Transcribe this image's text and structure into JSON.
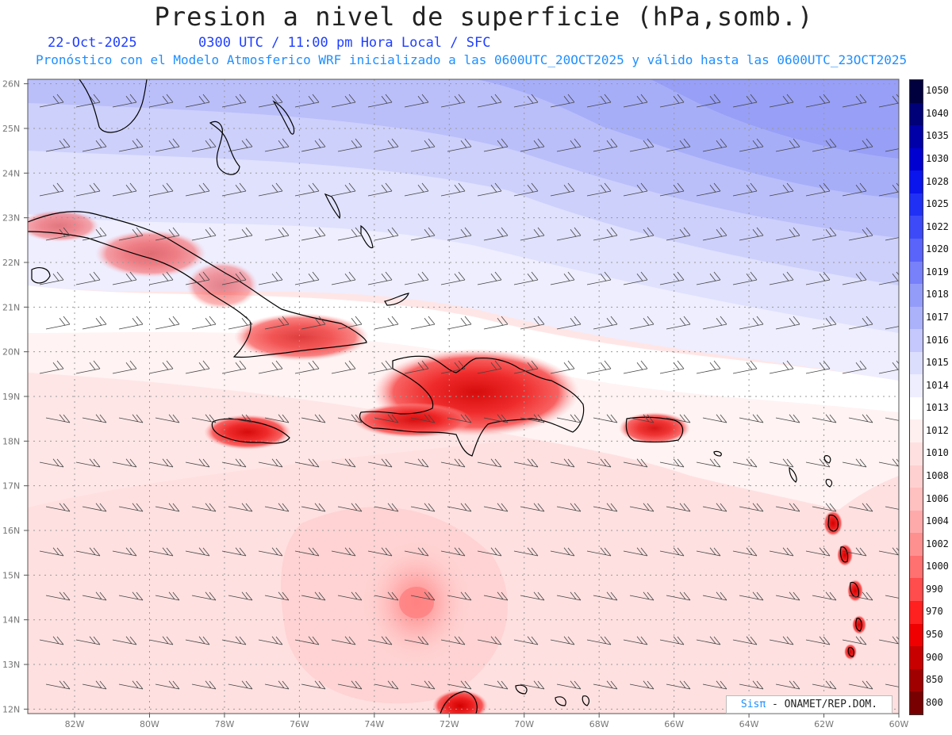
{
  "header": {
    "title": "Presion a nivel de superficie (hPa,somb.)",
    "date": "22-Oct-2025",
    "time": "0300 UTC / 11:00 pm Hora Local / SFC",
    "forecast_note": "Pronóstico con el Modelo Atmosferico WRF inicializado a las 0600UTC_20OCT2025 y válido hasta las  0600UTC_23OCT2025"
  },
  "axes": {
    "lat_labels": [
      "26N",
      "25N",
      "24N",
      "23N",
      "22N",
      "21N",
      "20N",
      "19N",
      "18N",
      "17N",
      "16N",
      "15N",
      "14N",
      "13N",
      "12N"
    ],
    "lon_labels": [
      "82W",
      "80W",
      "78W",
      "76W",
      "74W",
      "72W",
      "70W",
      "68W",
      "66W",
      "64W",
      "62W",
      "60W"
    ],
    "lat_values": [
      26,
      25,
      24,
      23,
      22,
      21,
      20,
      19,
      18,
      17,
      16,
      15,
      14,
      13,
      12
    ],
    "lon_values": [
      -82,
      -80,
      -78,
      -76,
      -74,
      -72,
      -70,
      -68,
      -66,
      -64,
      -62,
      -60
    ],
    "lon_range": [
      -83.25,
      -60
    ],
    "lat_range": [
      11.9,
      26.1
    ]
  },
  "colorbar": {
    "labels": [
      "1050",
      "1040",
      "1035",
      "1030",
      "1028",
      "1025",
      "1022",
      "1020",
      "1019",
      "1018",
      "1017",
      "1016",
      "1015",
      "1014",
      "1013",
      "1012",
      "1010",
      "1008",
      "1006",
      "1004",
      "1002",
      "1000",
      "990",
      "970",
      "950",
      "900",
      "850",
      "800"
    ],
    "colors": [
      "#00003e",
      "#000078",
      "#0000a8",
      "#0000d0",
      "#0a14ec",
      "#2030f4",
      "#3c4af8",
      "#5a64fa",
      "#7880fa",
      "#949cfa",
      "#acb2fa",
      "#c4c8fc",
      "#dcdefd",
      "#eeeeff",
      "#ffffff",
      "#fff0f0",
      "#ffe0e0",
      "#ffd0d0",
      "#ffc0c0",
      "#ffaaaa",
      "#ff9090",
      "#ff7070",
      "#ff4c4c",
      "#ff2020",
      "#f00000",
      "#c80000",
      "#a00000",
      "#780000"
    ]
  },
  "credit": {
    "sis": "Sisπ",
    "agency": "- ONAMET/REP.DOM."
  }
}
